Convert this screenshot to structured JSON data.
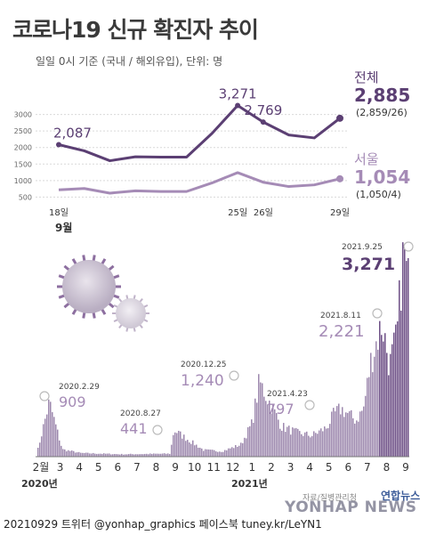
{
  "title": "코로나19 신규 확진자 추이",
  "subtitle": "일일 0시 기준 (국내 / 해외유입), 단위: 명",
  "colors": {
    "total": "#5b3f73",
    "seoul": "#a58bb6",
    "bar": "#9d88ae",
    "bar_dark": "#6d4f86",
    "grid": "#d9d9d9",
    "axis_text": "#666666"
  },
  "chart_data": [
    {
      "type": "line",
      "ylim": [
        0,
        3500
      ],
      "yticks": [
        "500",
        "1000",
        "1500",
        "2000",
        "2500",
        "3000"
      ],
      "x": [
        18,
        19,
        20,
        21,
        22,
        23,
        24,
        25,
        26,
        27,
        28,
        29
      ],
      "xtick_labels": [
        {
          "x": 18,
          "label": "18일"
        },
        {
          "x": 25,
          "label": "25일"
        },
        {
          "x": 26,
          "label": "26일"
        },
        {
          "x": 29,
          "label": "29일"
        }
      ],
      "month_label": "9월",
      "series": [
        {
          "name": "전체",
          "values": [
            2087,
            1900,
            1600,
            1720,
            1710,
            1710,
            2430,
            3271,
            2769,
            2380,
            2290,
            2885
          ],
          "callouts": [
            {
              "x": 18,
              "label": "2,087"
            },
            {
              "x": 25,
              "label": "3,271"
            },
            {
              "x": 26,
              "label": "2,769"
            }
          ],
          "end_value": "2,885",
          "end_detail": "(2,859/26)"
        },
        {
          "name": "서울",
          "values": [
            720,
            760,
            620,
            690,
            670,
            670,
            930,
            1240,
            950,
            820,
            870,
            1054
          ],
          "end_value": "1,054",
          "end_detail": "(1,050/4)"
        }
      ]
    },
    {
      "type": "bar",
      "x_labels": [
        "2월",
        "3",
        "4",
        "5",
        "6",
        "7",
        "8",
        "9",
        "10",
        "11",
        "12",
        "1",
        "2",
        "3",
        "4",
        "5",
        "6",
        "7",
        "8",
        "9"
      ],
      "year_labels": [
        "2020년",
        "2021년"
      ],
      "annotations": [
        {
          "date": "2020.2.29",
          "value": "909"
        },
        {
          "date": "2020.8.27",
          "value": "441"
        },
        {
          "date": "2020.12.25",
          "value": "1,240"
        },
        {
          "date": "2021.4.23",
          "value": "797"
        },
        {
          "date": "2021.8.11",
          "value": "2,221"
        },
        {
          "date": "2021.9.25",
          "value": "3,271"
        }
      ]
    }
  ],
  "source": "자료/질병관리청",
  "logo": "연합뉴스",
  "watermark": "YONHAP NEWS",
  "footer": "20210929 트위터 @yonhap_graphics  페이스북 tuney.kr/LeYN1"
}
